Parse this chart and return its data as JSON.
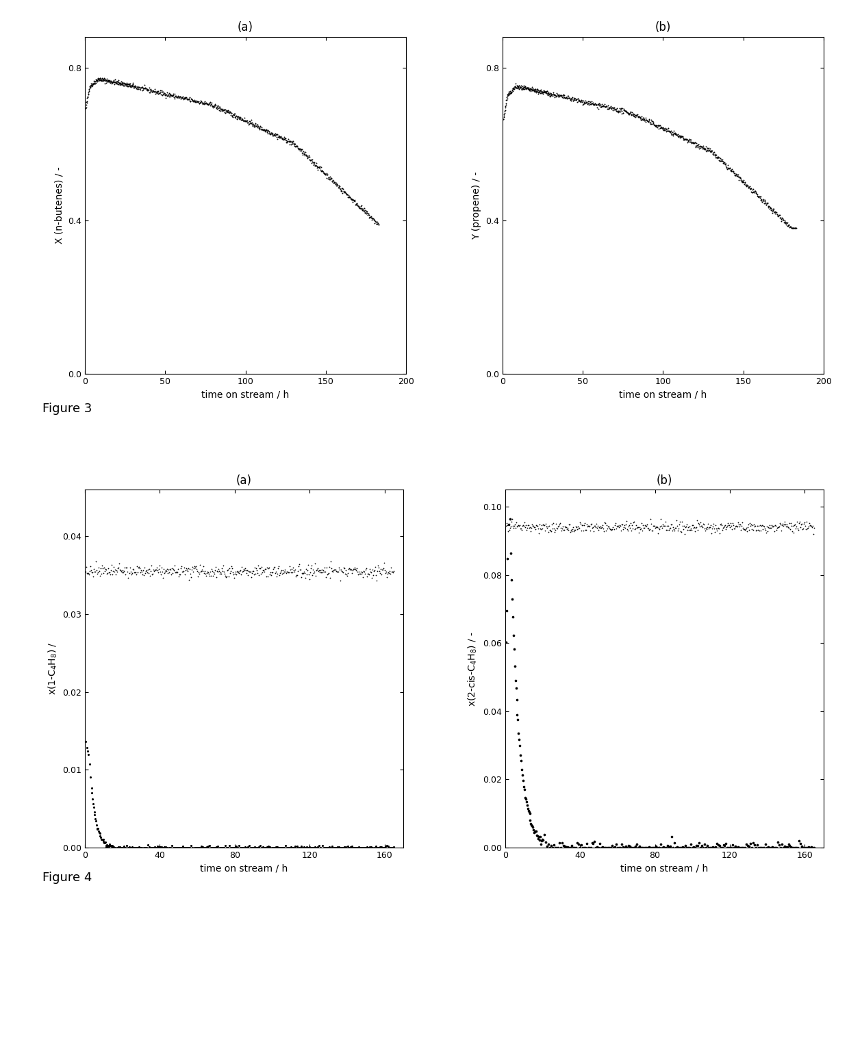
{
  "fig3_title_a": "(a)",
  "fig3_title_b": "(b)",
  "fig4_title_a": "(a)",
  "fig4_title_b": "(b)",
  "fig3_xlabel": "time on stream / h",
  "fig3_ylabel_a": "X (n-butenes) / -",
  "fig3_ylabel_b": "Y (propene) / -",
  "fig3_xlim": [
    0,
    200
  ],
  "fig3_ylim": [
    0.0,
    0.88
  ],
  "fig3_yticks": [
    0.0,
    0.4,
    0.8
  ],
  "fig3_xticks": [
    0,
    50,
    100,
    150,
    200
  ],
  "fig4_xlabel": "time on stream / h",
  "fig4_ylabel_a": "x(1-C$_4$H$_8$) /",
  "fig4_ylabel_b": "x(2-cis-C$_4$H$_8$) / -",
  "fig4_xlim": [
    0,
    170
  ],
  "fig4_ylim_a": [
    0.0,
    0.046
  ],
  "fig4_ylim_b": [
    0.0,
    0.105
  ],
  "fig4_yticks_a": [
    0.0,
    0.01,
    0.02,
    0.03,
    0.04
  ],
  "fig4_yticks_b": [
    0.0,
    0.02,
    0.04,
    0.06,
    0.08,
    0.1
  ],
  "fig4_xticks": [
    0,
    40,
    80,
    120,
    160
  ],
  "figure3_label": "Figure 3",
  "figure4_label": "Figure 4",
  "marker_color": "black",
  "background_color": "white",
  "title_fontsize": 12,
  "label_fontsize": 10,
  "tick_fontsize": 9
}
